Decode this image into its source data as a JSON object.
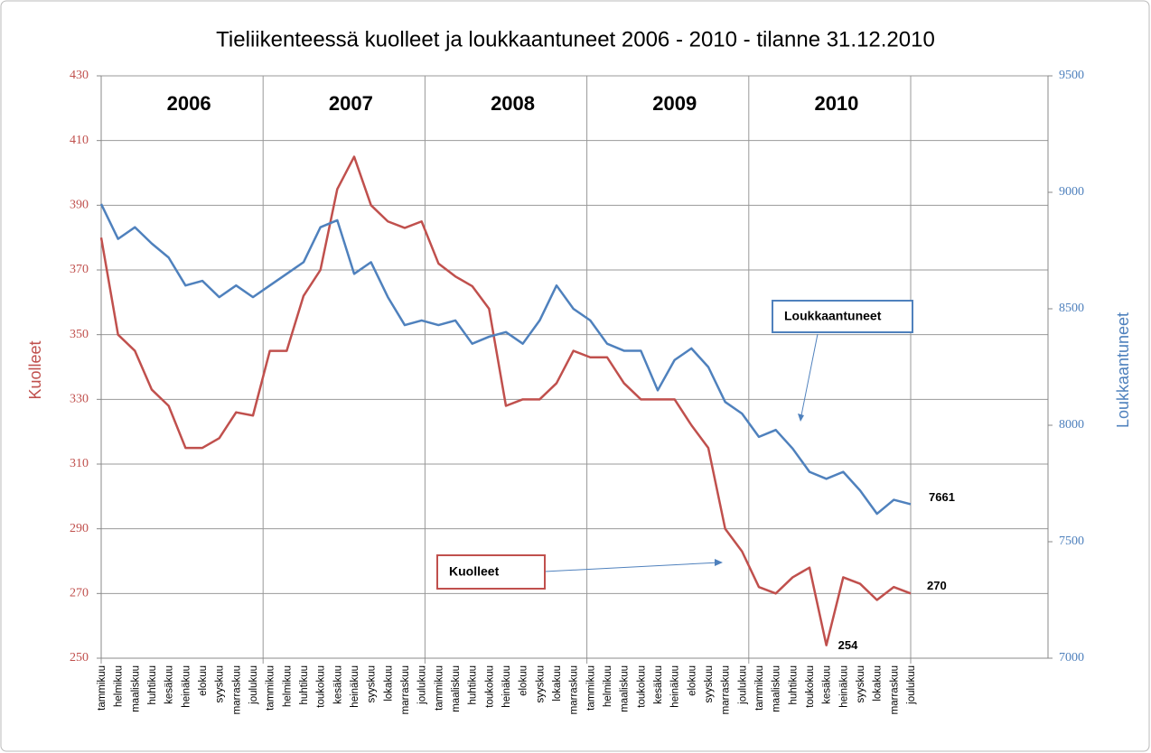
{
  "chart_data": {
    "type": "line",
    "title": "Tieliikenteessä kuolleet ja loukkaantuneet 2006 - 2010 - tilanne 31.12.2010",
    "ylabel": "Kuolleet",
    "y2label": "Loukkaantuneet",
    "year_labels": [
      "2006",
      "2007",
      "2008",
      "2009",
      "2010"
    ],
    "annotations": [
      "Loukkaantuneet",
      "Kuolleet"
    ],
    "categories": [
      "tammikuu",
      "helmikuu",
      "maaliskuu",
      "huhtikuu",
      "kesäkuu",
      "heinäkuu",
      "elokuu",
      "syyskuu",
      "marraskuu",
      "joulukuu",
      "tammikuu",
      "helmikuu",
      "huhtikuu",
      "toukokuu",
      "kesäkuu",
      "heinäkuu",
      "syyskuu",
      "lokakuu",
      "marraskuu",
      "joulukuu",
      "tammikuu",
      "maaliskuu",
      "huhtikuu",
      "toukokuu",
      "heinäkuu",
      "elokuu",
      "syyskuu",
      "lokakuu",
      "marraskuu",
      "tammikuu",
      "helmikuu",
      "maaliskuu",
      "toukokuu",
      "kesäkuu",
      "heinäkuu",
      "elokuu",
      "syyskuu",
      "marraskuu",
      "joulukuu",
      "tammikuu",
      "maaliskuu",
      "huhtikuu",
      "toukokuu",
      "kesäkuu",
      "heinäkuu",
      "syyskuu",
      "lokakuu",
      "marraskuu",
      "joulukuu"
    ],
    "series": [
      {
        "name": "Kuolleet",
        "color": "#c0504d",
        "axis": "y",
        "values": [
          380,
          350,
          345,
          333,
          328,
          315,
          315,
          318,
          326,
          325,
          345,
          345,
          362,
          370,
          395,
          405,
          390,
          385,
          383,
          385,
          372,
          368,
          365,
          358,
          328,
          330,
          330,
          335,
          345,
          343,
          343,
          335,
          330,
          330,
          330,
          322,
          315,
          290,
          283,
          272,
          270,
          275,
          278,
          254,
          275,
          273,
          268,
          272,
          270
        ]
      },
      {
        "name": "Loukkaantuneet",
        "color": "#4f81bd",
        "axis": "y2",
        "values": [
          8950,
          8800,
          8850,
          8780,
          8720,
          8600,
          8620,
          8550,
          8600,
          8550,
          8600,
          8650,
          8700,
          8850,
          8880,
          8650,
          8700,
          8550,
          8430,
          8450,
          8430,
          8450,
          8350,
          8380,
          8400,
          8350,
          8450,
          8600,
          8500,
          8450,
          8350,
          8320,
          8320,
          8150,
          8280,
          8330,
          8250,
          8100,
          8050,
          7950,
          7980,
          7900,
          7800,
          7770,
          7800,
          7720,
          7620,
          7680,
          7661
        ]
      }
    ],
    "ylim": [
      250,
      430
    ],
    "yticks": [
      250,
      270,
      290,
      310,
      330,
      350,
      370,
      390,
      410,
      430
    ],
    "y2lim": [
      7000,
      9500
    ],
    "y2ticks": [
      7000,
      7500,
      8000,
      8500,
      9000,
      9500
    ],
    "grid": true
  }
}
